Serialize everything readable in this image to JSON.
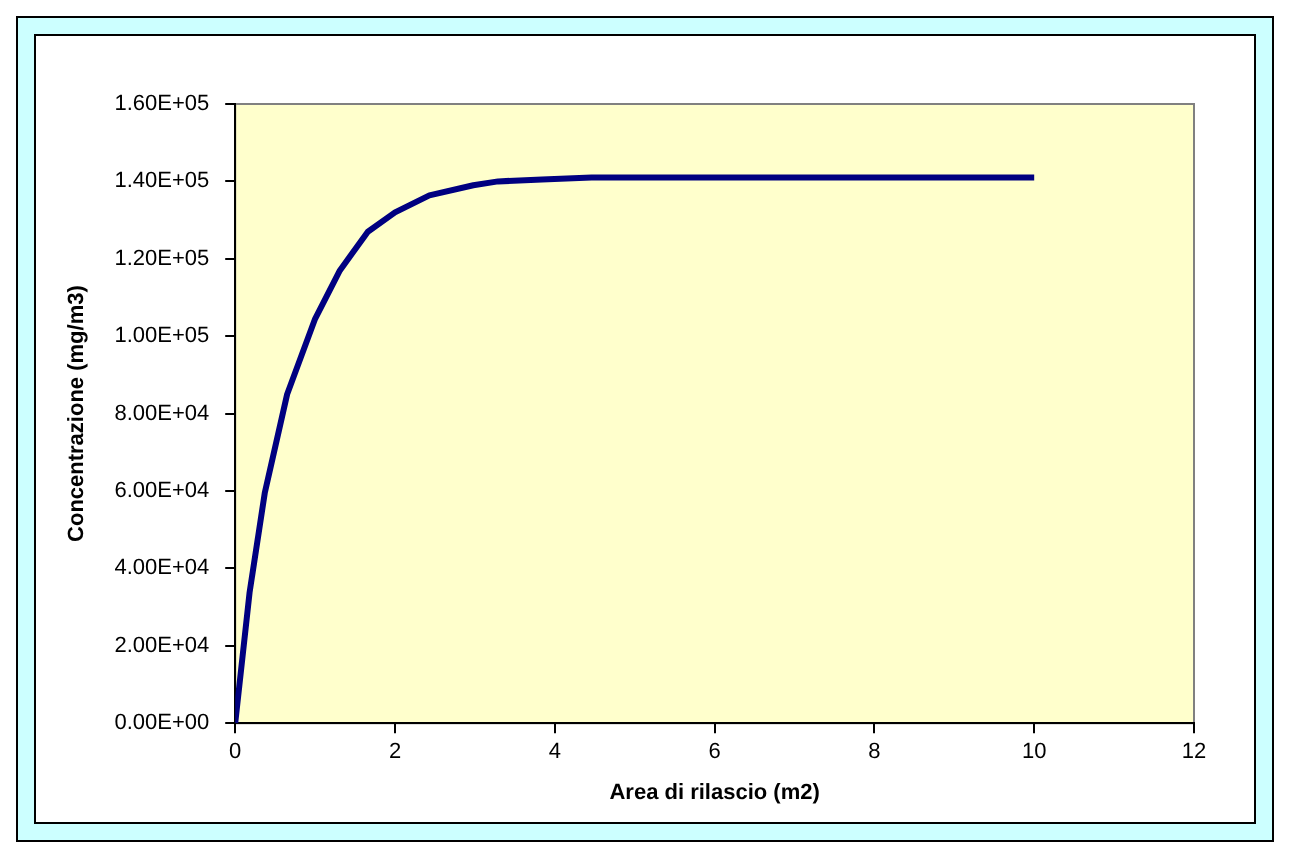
{
  "chart_data": {
    "type": "line",
    "xlabel": "Area di rilascio (m2)",
    "ylabel": "Concentrazione (mg/m3)",
    "series": [
      {
        "color": "#000080",
        "x": [
          0,
          0.18,
          0.37,
          0.65,
          1.0,
          1.31,
          1.66,
          2.0,
          2.43,
          2.98,
          3.29,
          3.84,
          4.46,
          10
        ],
        "values": [
          0,
          33800,
          59500,
          85000,
          104500,
          117000,
          127000,
          132000,
          136400,
          139000,
          140000,
          140500,
          141000,
          141000
        ]
      }
    ],
    "xlim": [
      0,
      12
    ],
    "xticks": [
      0,
      2,
      4,
      6,
      8,
      10,
      12
    ],
    "ylim": [
      0,
      160000
    ],
    "yticks": [
      {
        "value": 0,
        "label": "0.00E+00"
      },
      {
        "value": 20000,
        "label": "2.00E+04"
      },
      {
        "value": 40000,
        "label": "4.00E+04"
      },
      {
        "value": 60000,
        "label": "6.00E+04"
      },
      {
        "value": 80000,
        "label": "8.00E+04"
      },
      {
        "value": 100000,
        "label": "1.00E+05"
      },
      {
        "value": 120000,
        "label": "1.20E+05"
      },
      {
        "value": 140000,
        "label": "1.40E+05"
      },
      {
        "value": 160000,
        "label": "1.60E+05"
      }
    ],
    "grid": false,
    "legend": false,
    "marker": "none",
    "line_style": "solid"
  }
}
